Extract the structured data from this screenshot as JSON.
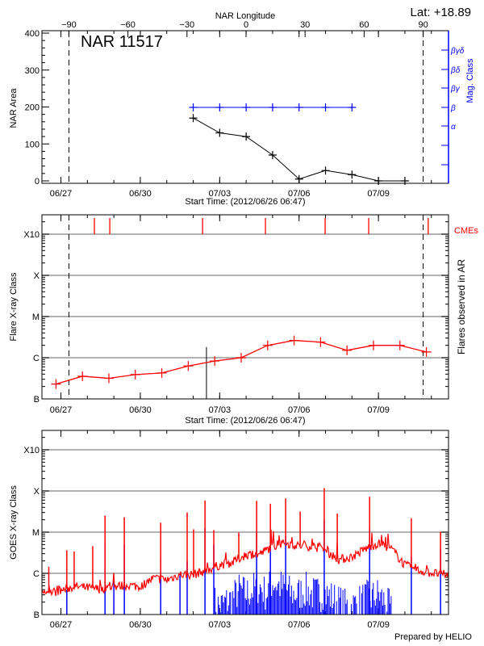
{
  "colors": {
    "axis": "#000000",
    "mag_class": "#0000ff",
    "flare": "#ff0000",
    "cme": "#ff0000",
    "goes_long": "#ff0000",
    "goes_short": "#0000ff",
    "grid": "#999999"
  },
  "start_time": "2012-06-26T06:47",
  "chart_data": [
    {
      "type": "line",
      "title": "NAR 11517",
      "lat_label": "Lat: +18.89",
      "xlabel": "Start Time: (2012/06/26 06:47)",
      "x_ticks": [
        "06/27",
        "06/30",
        "07/03",
        "07/06",
        "07/09"
      ],
      "x_tick_dates": [
        "2012-06-27T00:00",
        "2012-06-30T00:00",
        "2012-07-03T00:00",
        "2012-07-06T00:00",
        "2012-07-09T00:00"
      ],
      "top_axis": {
        "label": "NAR Longitude",
        "ticks": [
          -90,
          -60,
          -30,
          0,
          30,
          60,
          90
        ],
        "dashed_lines_at": [
          -90,
          90
        ]
      },
      "ylabel": "NAR Area",
      "ylim": [
        0,
        400
      ],
      "y_ticks": [
        0,
        100,
        200,
        300,
        400
      ],
      "right_axis": {
        "label": "Mag. Class",
        "ticks": [
          "α",
          "β",
          "βγ",
          "βδ",
          "βγδ"
        ]
      },
      "series": [
        {
          "x": [
            "2012-07-02T00:00",
            "2012-07-03T00:00",
            "2012-07-04T00:00",
            "2012-07-05T00:00",
            "2012-07-06T00:00",
            "2012-07-07T00:00",
            "2012-07-08T00:00",
            "2012-07-09T00:00",
            "2012-07-10T00:00"
          ],
          "values": [
            170,
            130,
            120,
            70,
            5,
            28,
            17,
            0,
            0
          ]
        },
        {
          "x": [
            "2012-07-02T00:00",
            "2012-07-03T00:00",
            "2012-07-04T00:00",
            "2012-07-05T00:00",
            "2012-07-06T00:00",
            "2012-07-07T00:00",
            "2012-07-08T00:00"
          ],
          "values": [
            "β",
            "β",
            "β",
            "β",
            "β",
            "β",
            "β"
          ]
        }
      ]
    },
    {
      "type": "line",
      "xlabel": "Start Time: (2012/06/26 06:47)",
      "x_ticks": [
        "06/27",
        "06/30",
        "07/03",
        "07/06",
        "07/09"
      ],
      "ylabel": "Flare X-ray Class",
      "right_label": "Flares observed in AR",
      "cme_label": "CMEs",
      "y_scale": "log",
      "y_ticks": [
        "B",
        "C",
        "M",
        "X",
        "X10"
      ],
      "y_tick_log_flux": [
        -7,
        -6,
        -5,
        -4,
        -3
      ],
      "grid": true,
      "series": [
        {
          "x": [
            "2012-06-26T19:30",
            "2012-06-27T19:30",
            "2012-06-28T19:30",
            "2012-06-29T19:30",
            "2012-06-30T19:30",
            "2012-07-01T19:30",
            "2012-07-02T19:30",
            "2012-07-03T19:30",
            "2012-07-04T19:30",
            "2012-07-05T19:30",
            "2012-07-06T19:30",
            "2012-07-07T19:30",
            "2012-07-08T19:30",
            "2012-07-09T19:30",
            "2012-07-10T19:30"
          ],
          "values": [
            -6.64,
            -6.45,
            -6.5,
            -6.41,
            -6.37,
            -6.2,
            -6.08,
            -6.0,
            -5.7,
            -5.58,
            -5.62,
            -5.82,
            -5.7,
            -5.7,
            -5.86
          ]
        }
      ],
      "flare_events": [
        {
          "x": "2012-07-02T12:00",
          "value": -5.74
        }
      ],
      "cmes": [
        "2012-06-28T06:20",
        "2012-06-28T20:20",
        "2012-07-02T08:30",
        "2012-07-04T17:30",
        "2012-07-06T23:40",
        "2012-07-08T15:10",
        "2012-07-10T21:10"
      ]
    },
    {
      "type": "line",
      "x_ticks": [
        "06/27",
        "06/30",
        "07/03",
        "07/06",
        "07/09"
      ],
      "ylabel": "GOES X-ray Class",
      "y_scale": "log",
      "y_ticks": [
        "B",
        "C",
        "M",
        "X",
        "X10"
      ],
      "grid": true,
      "footer": "Prepared by HELIO",
      "long_channel_baseline": {
        "x": [
          "2012-06-26T12:00",
          "2012-06-27T00:00",
          "2012-06-27T12:00",
          "2012-06-28T00:00",
          "2012-06-28T12:00",
          "2012-06-29T00:00",
          "2012-06-29T12:00",
          "2012-06-30T00:00",
          "2012-06-30T12:00",
          "2012-07-01T00:00",
          "2012-07-01T12:00",
          "2012-07-02T00:00",
          "2012-07-02T12:00",
          "2012-07-03T00:00",
          "2012-07-03T12:00",
          "2012-07-04T00:00",
          "2012-07-04T12:00",
          "2012-07-05T00:00",
          "2012-07-05T12:00",
          "2012-07-06T00:00",
          "2012-07-06T12:00",
          "2012-07-07T00:00",
          "2012-07-07T12:00",
          "2012-07-08T00:00",
          "2012-07-08T12:00",
          "2012-07-09T00:00",
          "2012-07-09T12:00",
          "2012-07-10T00:00",
          "2012-07-10T12:00",
          "2012-07-11T00:00",
          "2012-07-11T12:00"
        ],
        "values": [
          -6.48,
          -6.42,
          -6.32,
          -6.35,
          -6.38,
          -6.32,
          -6.29,
          -6.32,
          -6.12,
          -6.16,
          -6.03,
          -6.03,
          -5.93,
          -5.8,
          -5.73,
          -5.54,
          -5.54,
          -5.34,
          -5.27,
          -5.34,
          -5.34,
          -5.44,
          -5.67,
          -5.6,
          -5.41,
          -5.27,
          -5.41,
          -5.8,
          -5.93,
          -5.99,
          -6.03
        ]
      },
      "long_channel_peaks": [
        [
          "2012-06-26T13:00",
          -5.84
        ],
        [
          "2012-06-27T05:20",
          -5.44
        ],
        [
          "2012-06-27T12:00",
          -5.47
        ],
        [
          "2012-06-28T04:50",
          -5.34
        ],
        [
          "2012-06-28T16:00",
          -4.6
        ],
        [
          "2012-06-29T09:30",
          -4.64
        ],
        [
          "2012-06-30T18:30",
          -4.77
        ],
        [
          "2012-07-01T18:30",
          -4.52
        ],
        [
          "2012-07-02T00:20",
          -4.93
        ],
        [
          "2012-07-02T10:40",
          -4.23
        ],
        [
          "2012-07-02T18:40",
          -4.95
        ],
        [
          "2012-07-03T17:20",
          -5.01
        ],
        [
          "2012-07-04T09:30",
          -4.24
        ],
        [
          "2012-07-04T22:00",
          -4.31
        ],
        [
          "2012-07-05T11:50",
          -4.18
        ],
        [
          "2012-07-06T01:00",
          -4.5
        ],
        [
          "2012-07-06T22:50",
          -3.93
        ],
        [
          "2012-07-07T10:40",
          -4.55
        ],
        [
          "2012-07-08T16:00",
          -4.14
        ],
        [
          "2012-07-10T05:50",
          -4.66
        ],
        [
          "2012-07-11T08:20",
          -4.99
        ]
      ],
      "short_channel_baseline": {
        "x": [
          "2012-07-02T18:00",
          "2012-07-03T00:00",
          "2012-07-03T12:00",
          "2012-07-03T18:00",
          "2012-07-04T00:00",
          "2012-07-04T06:00",
          "2012-07-04T12:00",
          "2012-07-04T18:00",
          "2012-07-05T00:00",
          "2012-07-05T06:00",
          "2012-07-05T12:00",
          "2012-07-05T18:00",
          "2012-07-06T00:00",
          "2012-07-06T06:00",
          "2012-07-06T12:00",
          "2012-07-06T18:00",
          "2012-07-07T00:00",
          "2012-07-07T06:00",
          "2012-07-07T12:00",
          "2012-07-07T18:00",
          "2012-07-08T00:00",
          "2012-07-08T06:00",
          "2012-07-08T12:00",
          "2012-07-08T18:00",
          "2012-07-09T00:00",
          "2012-07-09T06:00",
          "2012-07-09T12:00"
        ],
        "values": [
          -6.7,
          -6.8,
          -6.6,
          -6.4,
          -6.5,
          -6.4,
          -6.3,
          -6.5,
          -6.2,
          -6.3,
          -6.4,
          -6.5,
          -6.5,
          -6.4,
          -6.5,
          -6.5,
          -6.5,
          -6.6,
          -6.7,
          -6.8,
          -6.8,
          -6.7,
          -6.6,
          -6.6,
          -6.5,
          -6.7,
          -6.9
        ]
      },
      "short_channel_peaks": [
        [
          "2012-06-27T05:20",
          -6.4
        ],
        [
          "2012-06-28T16:00",
          -5.25
        ],
        [
          "2012-06-29T00:00",
          -6.2
        ],
        [
          "2012-06-29T09:30",
          -5.3
        ],
        [
          "2012-06-30T18:30",
          -5.6
        ],
        [
          "2012-07-01T12:00",
          -6.0
        ],
        [
          "2012-07-01T18:30",
          -5.7
        ],
        [
          "2012-07-02T10:40",
          -4.9
        ],
        [
          "2012-07-02T18:40",
          -5.3
        ],
        [
          "2012-07-04T09:30",
          -5.0
        ],
        [
          "2012-07-04T22:00",
          -5.2
        ],
        [
          "2012-07-05T11:50",
          -5.1
        ],
        [
          "2012-07-06T22:50",
          -4.7
        ],
        [
          "2012-07-08T16:00",
          -4.9
        ],
        [
          "2012-07-10T05:50",
          -5.6
        ],
        [
          "2012-07-11T08:20",
          -5.4
        ]
      ]
    }
  ]
}
